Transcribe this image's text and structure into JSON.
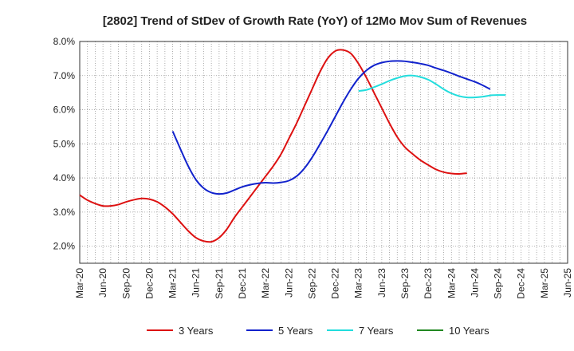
{
  "chart_data": {
    "type": "line",
    "title": "[2802]  Trend of StDev of Growth Rate (YoY) of 12Mo Mov Sum of Revenues",
    "xlabel": "",
    "ylabel": "",
    "ylim": [
      1.5,
      8.0
    ],
    "yticks": [
      2.0,
      3.0,
      4.0,
      5.0,
      6.0,
      7.0,
      8.0
    ],
    "ytick_labels": [
      "2.0%",
      "3.0%",
      "4.0%",
      "5.0%",
      "6.0%",
      "7.0%",
      "8.0%"
    ],
    "x_labels": [
      "Mar-20",
      "Jun-20",
      "Sep-20",
      "Dec-20",
      "Mar-21",
      "Jun-21",
      "Sep-21",
      "Dec-21",
      "Mar-22",
      "Jun-22",
      "Sep-22",
      "Dec-22",
      "Mar-23",
      "Jun-23",
      "Sep-23",
      "Dec-23",
      "Mar-24",
      "Jun-24",
      "Sep-24",
      "Dec-24",
      "Mar-25",
      "Jun-25"
    ],
    "grid": true,
    "legend_position": "bottom",
    "series": [
      {
        "name": "3 Years",
        "color": "#dd1111",
        "start_index": 0,
        "values": [
          3.5,
          3.35,
          3.25,
          3.18,
          3.18,
          3.22,
          3.3,
          3.36,
          3.4,
          3.38,
          3.3,
          3.15,
          2.95,
          2.7,
          2.45,
          2.25,
          2.15,
          2.13,
          2.25,
          2.5,
          2.85,
          3.15,
          3.45,
          3.75,
          4.05,
          4.35,
          4.7,
          5.15,
          5.6,
          6.1,
          6.6,
          7.1,
          7.5,
          7.72,
          7.75,
          7.65,
          7.35,
          6.95,
          6.5,
          6.05,
          5.6,
          5.2,
          4.9,
          4.7,
          4.52,
          4.38,
          4.25,
          4.17,
          4.13,
          4.12,
          4.14
        ]
      },
      {
        "name": "5 Years",
        "color": "#1122cc",
        "start_index": 12,
        "values": [
          5.37,
          4.85,
          4.35,
          3.95,
          3.7,
          3.57,
          3.53,
          3.56,
          3.65,
          3.74,
          3.8,
          3.84,
          3.86,
          3.85,
          3.87,
          3.92,
          4.05,
          4.28,
          4.6,
          4.98,
          5.38,
          5.8,
          6.22,
          6.6,
          6.92,
          7.15,
          7.3,
          7.38,
          7.42,
          7.43,
          7.42,
          7.39,
          7.35,
          7.3,
          7.22,
          7.15,
          7.07,
          6.98,
          6.9,
          6.82,
          6.72,
          6.6
        ]
      },
      {
        "name": "7 Years",
        "color": "#22dddd",
        "start_index": 36,
        "values": [
          6.55,
          6.58,
          6.66,
          6.75,
          6.85,
          6.93,
          6.99,
          7.0,
          6.96,
          6.88,
          6.75,
          6.6,
          6.48,
          6.4,
          6.36,
          6.36,
          6.38,
          6.42,
          6.43,
          6.43
        ]
      },
      {
        "name": "10 Years",
        "color": "#228822",
        "start_index": 0,
        "values": []
      }
    ]
  }
}
